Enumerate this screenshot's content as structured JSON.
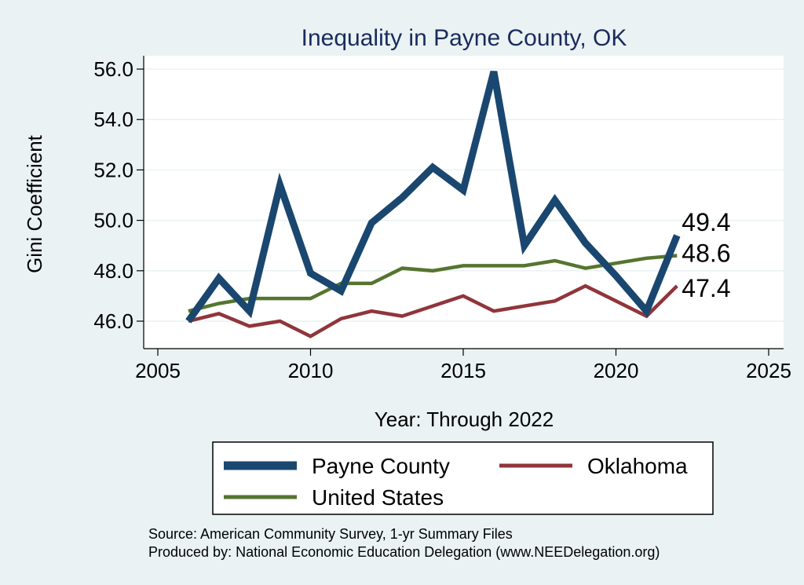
{
  "chart_data": {
    "type": "line",
    "title": "Inequality in Payne County, OK",
    "xlabel": "Year: Through 2022",
    "ylabel": "Gini Coefficient",
    "xlim": [
      2005,
      2025
    ],
    "ylim": [
      45,
      57
    ],
    "x_ticks": [
      "2005",
      "2010",
      "2015",
      "2020",
      "2025"
    ],
    "y_ticks": [
      "46.0",
      "48.0",
      "50.0",
      "52.0",
      "54.0",
      "56.0"
    ],
    "grid": true,
    "x": [
      2006,
      2007,
      2008,
      2009,
      2010,
      2011,
      2012,
      2013,
      2014,
      2015,
      2016,
      2017,
      2018,
      2019,
      2020,
      2021,
      2022
    ],
    "series": [
      {
        "name": "Payne County",
        "color": "#1a476f",
        "values": [
          46.0,
          47.7,
          46.4,
          51.4,
          47.9,
          47.2,
          49.9,
          50.9,
          52.1,
          51.2,
          55.9,
          49.0,
          50.8,
          49.1,
          47.8,
          46.4,
          49.4
        ],
        "end_label": "49.4"
      },
      {
        "name": "Oklahoma",
        "color": "#90353b",
        "values": [
          46.0,
          46.3,
          45.8,
          46.0,
          45.4,
          46.1,
          46.4,
          46.2,
          46.6,
          47.0,
          46.4,
          46.6,
          46.8,
          47.4,
          46.8,
          46.2,
          47.4
        ],
        "end_label": "47.4"
      },
      {
        "name": "United States",
        "color": "#55752f",
        "values": [
          46.4,
          46.7,
          46.9,
          46.9,
          46.9,
          47.5,
          47.5,
          48.1,
          48.0,
          48.2,
          48.2,
          48.2,
          48.4,
          48.1,
          48.3,
          48.5,
          48.6
        ],
        "end_label": "48.6"
      }
    ],
    "legend": {
      "position": "bottom",
      "items": [
        "Payne County",
        "Oklahoma",
        "United States"
      ]
    },
    "notes": [
      "Source: American Community Survey, 1-yr Summary Files",
      "Produced by: National Economic Education Delegation (www.NEEDelegation.org)"
    ]
  }
}
